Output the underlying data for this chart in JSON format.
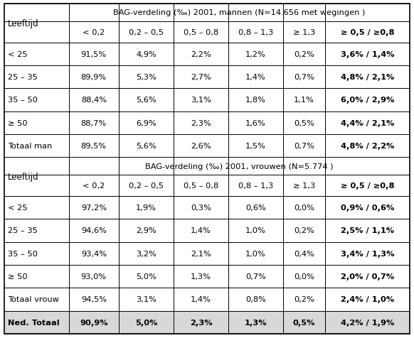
{
  "col_headers": [
    "< 0,2",
    "0,2 – 0,5",
    "0,5 – 0,8",
    "0,8 – 1,3",
    "≥ 1,3",
    "≥ 0,5 / ≥0,8"
  ],
  "data_men": [
    [
      "91,5%",
      "4,9%",
      "2,2%",
      "1,2%",
      "0,2%",
      "3,6% / 1,4%"
    ],
    [
      "89,9%",
      "5,3%",
      "2,7%",
      "1,4%",
      "0,7%",
      "4,8% / 2,1%"
    ],
    [
      "88,4%",
      "5,6%",
      "3,1%",
      "1,8%",
      "1,1%",
      "6,0% / 2,9%"
    ],
    [
      "88,7%",
      "6,9%",
      "2,3%",
      "1,6%",
      "0,5%",
      "4,4% / 2,1%"
    ],
    [
      "89,5%",
      "5,6%",
      "2,6%",
      "1,5%",
      "0,7%",
      "4,8% / 2,2%"
    ]
  ],
  "data_women": [
    [
      "97,2%",
      "1,9%",
      "0,3%",
      "0,6%",
      "0,0%",
      "0,9% / 0,6%"
    ],
    [
      "94,6%",
      "2,9%",
      "1,4%",
      "1,0%",
      "0,2%",
      "2,5% / 1,1%"
    ],
    [
      "93,4%",
      "3,2%",
      "2,1%",
      "1,0%",
      "0,4%",
      "3,4% / 1,3%"
    ],
    [
      "93,0%",
      "5,0%",
      "1,3%",
      "0,7%",
      "0,0%",
      "2,0% / 0,7%"
    ],
    [
      "94,5%",
      "3,1%",
      "1,4%",
      "0,8%",
      "0,2%",
      "2,4% / 1,0%"
    ]
  ],
  "data_total": [
    "90,9%",
    "5,0%",
    "2,3%",
    "1,3%",
    "0,5%",
    "4,2% / 1,9%"
  ],
  "men_labels": [
    "< 25",
    "25 – 35",
    "35 – 50",
    "≥ 50",
    "Totaal man"
  ],
  "women_labels": [
    "< 25",
    "25 – 35",
    "35 – 50",
    "≥ 50",
    "Totaal vrouw"
  ],
  "row_label_total": "Ned. Totaal",
  "title_men_pre": "BAG-verdeling (‰) ",
  "title_men_bold": "2001, mannen",
  "title_men_post": " (N=14.656 met wegingen )",
  "title_women_pre": "BAG-verdeling (‰) ",
  "title_women_bold": "2001, vrouwen",
  "title_women_post": " (N=5.774 )"
}
